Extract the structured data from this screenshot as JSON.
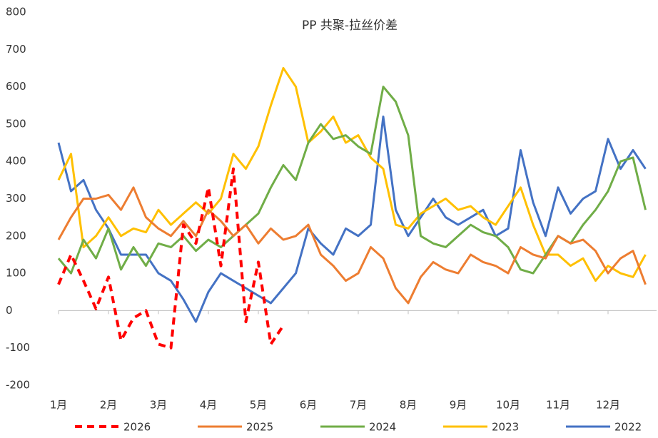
{
  "chart_data": {
    "type": "line",
    "title": "PP 共聚-拉丝价差",
    "categories": [
      "1月",
      null,
      null,
      null,
      "2月",
      null,
      null,
      null,
      "3月",
      null,
      null,
      null,
      "4月",
      null,
      null,
      null,
      "5月",
      null,
      null,
      null,
      "6月",
      null,
      null,
      null,
      "7月",
      null,
      null,
      null,
      "8月",
      null,
      null,
      null,
      "9月",
      null,
      null,
      null,
      "10月",
      null,
      null,
      null,
      "11月",
      null,
      null,
      null,
      "12月",
      null,
      null,
      null
    ],
    "ylim": [
      -200,
      800
    ],
    "yticks": [
      -200,
      -100,
      0,
      100,
      200,
      300,
      400,
      500,
      600,
      700,
      800
    ],
    "grid": false,
    "legend": "bottom",
    "series": [
      {
        "name": "2026",
        "color": "#ff0000",
        "dashed": true,
        "values": [
          70,
          150,
          80,
          5,
          90,
          -80,
          -20,
          0,
          -90,
          -100,
          230,
          180,
          330,
          120,
          380,
          -30,
          130,
          -90,
          -40,
          null,
          null,
          null,
          null,
          null,
          null,
          null,
          null,
          null,
          null,
          null,
          null,
          null,
          null,
          null,
          null,
          null,
          null,
          null,
          null,
          null,
          null,
          null,
          null,
          null,
          null,
          null,
          null,
          null
        ]
      },
      {
        "name": "2025",
        "color": "#ed7d31",
        "values": [
          190,
          250,
          300,
          300,
          310,
          270,
          330,
          250,
          220,
          200,
          240,
          200,
          270,
          240,
          200,
          230,
          180,
          220,
          190,
          200,
          230,
          150,
          120,
          80,
          100,
          170,
          140,
          60,
          20,
          90,
          130,
          110,
          100,
          150,
          130,
          120,
          100,
          170,
          150,
          140,
          200,
          180,
          190,
          160,
          100,
          140,
          160,
          70
        ]
      },
      {
        "name": "2024",
        "color": "#70ad47",
        "values": [
          140,
          100,
          190,
          140,
          220,
          110,
          170,
          120,
          180,
          170,
          200,
          160,
          190,
          170,
          200,
          230,
          260,
          330,
          390,
          350,
          450,
          500,
          460,
          470,
          440,
          420,
          600,
          560,
          470,
          200,
          180,
          170,
          200,
          230,
          210,
          200,
          170,
          110,
          100,
          150,
          200,
          180,
          230,
          270,
          320,
          400,
          410,
          270
        ]
      },
      {
        "name": "2023",
        "color": "#ffc000",
        "values": [
          350,
          420,
          170,
          200,
          250,
          200,
          220,
          210,
          270,
          230,
          260,
          290,
          260,
          300,
          420,
          380,
          440,
          550,
          650,
          600,
          450,
          480,
          520,
          450,
          470,
          410,
          380,
          230,
          220,
          260,
          280,
          300,
          270,
          280,
          250,
          230,
          280,
          330,
          230,
          150,
          150,
          120,
          140,
          80,
          120,
          100,
          90,
          150
        ]
      },
      {
        "name": "2022",
        "color": "#4472c4",
        "values": [
          450,
          320,
          350,
          270,
          220,
          150,
          150,
          150,
          100,
          80,
          30,
          -30,
          50,
          100,
          80,
          60,
          40,
          20,
          60,
          100,
          220,
          180,
          150,
          220,
          200,
          230,
          520,
          270,
          200,
          250,
          300,
          250,
          230,
          250,
          270,
          200,
          220,
          430,
          290,
          200,
          330,
          260,
          300,
          320,
          460,
          380,
          430,
          380
        ]
      }
    ]
  }
}
